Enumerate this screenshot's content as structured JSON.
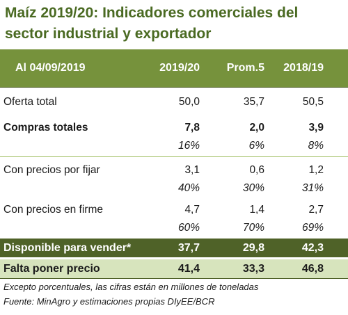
{
  "title": "Maíz 2019/20: Indicadores comerciales del sector industrial y exportador",
  "header": {
    "date_label": "Al 04/09/2019",
    "col_a": "2019/20",
    "col_b": "Prom.5",
    "col_c": "2018/19"
  },
  "rows": [
    {
      "label": "Oferta total",
      "a": "50,0",
      "b": "35,7",
      "c": "50,5"
    },
    {
      "label": "Compras totales",
      "a": "7,8",
      "b": "2,0",
      "c": "3,9"
    },
    {
      "label": "",
      "a": "16%",
      "b": "6%",
      "c": "8%"
    },
    {
      "label": "Con precios por fijar",
      "a": "3,1",
      "b": "0,6",
      "c": "1,2"
    },
    {
      "label": "",
      "a": "40%",
      "b": "30%",
      "c": "31%"
    },
    {
      "label": "Con precios en firme",
      "a": "4,7",
      "b": "1,4",
      "c": "2,7"
    },
    {
      "label": "",
      "a": "60%",
      "b": "70%",
      "c": "69%"
    }
  ],
  "disponible": {
    "label": "Disponible para vender*",
    "a": "37,7",
    "b": "29,8",
    "c": "42,3"
  },
  "falta": {
    "label": "Falta poner precio",
    "a": "41,4",
    "b": "33,3",
    "c": "46,8"
  },
  "notes": {
    "line1": "Excepto porcentuales, las cifras están en millones de toneladas",
    "line2": "Fuente: MinAgro y estimaciones propias DIyEE/BCR"
  },
  "colors": {
    "title": "#4a6a22",
    "header_bg": "#76923c",
    "disponible_bg": "#4f6228",
    "falta_bg": "#d7e4bd"
  }
}
